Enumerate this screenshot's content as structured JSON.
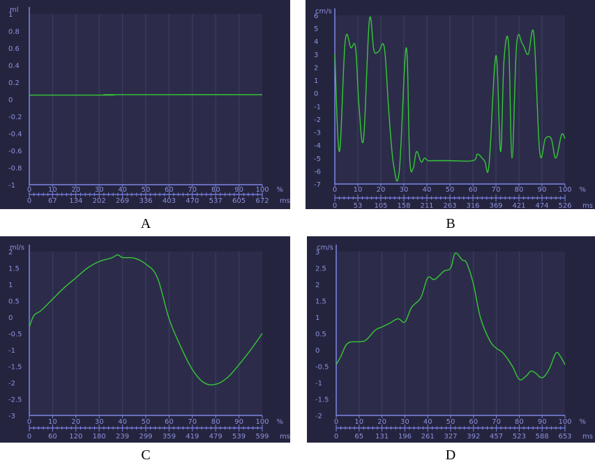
{
  "colors": {
    "panel_bg": "#25243f",
    "plot_bg": "#2c2c4a",
    "grid": "#3e3f63",
    "axis": "#7f86e6",
    "label": "#8d92dc",
    "line": "#37c837",
    "caption": "#000000"
  },
  "chart_data": [
    {
      "id": "A",
      "caption": "A",
      "type": "line",
      "unit": "ml",
      "ylim": [
        -1,
        1
      ],
      "yticks": [
        "1",
        "0.8",
        "0.6",
        "0.4",
        "0.2",
        "0",
        "-0.2",
        "-0.4",
        "-0.6",
        "-0.8",
        "-1"
      ],
      "xticks_pct": [
        "0",
        "10",
        "20",
        "30",
        "40",
        "50",
        "60",
        "70",
        "80",
        "90",
        "100"
      ],
      "xunit_pct": "%",
      "xticks_ms": [
        "0",
        "67",
        "134",
        "202",
        "269",
        "336",
        "403",
        "470",
        "537",
        "605",
        "672"
      ],
      "xunit_ms": "ms",
      "grid": true,
      "series": [
        {
          "x": [
            0,
            35,
            36,
            100
          ],
          "y": [
            0.05,
            0.05,
            0.055,
            0.055
          ]
        }
      ]
    },
    {
      "id": "B",
      "caption": "B",
      "type": "line",
      "unit": "cm/s",
      "ylim": [
        -7,
        6
      ],
      "yticks": [
        "6",
        "5",
        "4",
        "3",
        "2",
        "1",
        "0",
        "-1",
        "-2",
        "-3",
        "-4",
        "-5",
        "-6",
        "-7"
      ],
      "xticks_pct": [
        "0",
        "10",
        "20",
        "30",
        "40",
        "50",
        "60",
        "70",
        "80",
        "90",
        "100"
      ],
      "xunit_pct": "%",
      "xticks_ms": [
        "0",
        "53",
        "105",
        "158",
        "211",
        "263",
        "316",
        "369",
        "421",
        "474",
        "526"
      ],
      "xunit_ms": "ms",
      "grid": true,
      "series": [
        {
          "x": [
            0,
            2,
            4.5,
            7,
            9,
            10.5,
            12.5,
            15,
            17,
            19,
            21.5,
            23.5,
            25.5,
            28,
            31,
            32.5,
            34,
            35.5,
            37.5,
            39,
            40.5,
            43,
            50,
            60,
            62,
            65,
            67,
            70,
            72,
            73.5,
            75.5,
            77,
            79,
            81.5,
            84,
            86.5,
            89,
            91.5,
            94,
            96,
            98.5,
            100
          ],
          "y": [
            3,
            -4.5,
            4,
            3.5,
            3.5,
            -1,
            -3.5,
            5.6,
            3.3,
            3.2,
            3.5,
            -1.5,
            -5.5,
            -6,
            3.5,
            -5,
            -5.8,
            -4.5,
            -5.3,
            -5,
            -5.2,
            -5.2,
            -5.2,
            -5.2,
            -4.7,
            -5.2,
            -5.5,
            2.9,
            -4.5,
            2.5,
            3.8,
            -5,
            3.8,
            3.8,
            3.0,
            4.5,
            -4.5,
            -3.5,
            -3.5,
            -5,
            -3.2,
            -3.5
          ]
        }
      ]
    },
    {
      "id": "C",
      "caption": "C",
      "type": "line",
      "unit": "ml/s",
      "ylim": [
        -3,
        2
      ],
      "yticks": [
        "2",
        "1.5",
        "1",
        "0.5",
        "0",
        "-0.5",
        "-1",
        "-1.5",
        "-2",
        "-2.5",
        "-3"
      ],
      "xticks_pct": [
        "0",
        "10",
        "20",
        "30",
        "40",
        "50",
        "60",
        "70",
        "80",
        "90",
        "100"
      ],
      "xunit_pct": "%",
      "xticks_ms": [
        "0",
        "60",
        "120",
        "180",
        "239",
        "299",
        "359",
        "419",
        "479",
        "539",
        "599"
      ],
      "xunit_ms": "ms",
      "grid": true,
      "series": [
        {
          "x": [
            0,
            2,
            5,
            10,
            15,
            20,
            25,
            30,
            35,
            38,
            40,
            45,
            50,
            55,
            60,
            65,
            70,
            75,
            80,
            85,
            90,
            95,
            100
          ],
          "y": [
            -0.3,
            0.05,
            0.2,
            0.55,
            0.9,
            1.2,
            1.5,
            1.7,
            1.8,
            1.9,
            1.82,
            1.8,
            1.62,
            1.2,
            -0.05,
            -0.9,
            -1.6,
            -2.0,
            -2.05,
            -1.85,
            -1.45,
            -1.0,
            -0.5
          ]
        }
      ]
    },
    {
      "id": "D",
      "caption": "D",
      "type": "line",
      "unit": "cm/s",
      "ylim": [
        -2,
        3
      ],
      "yticks": [
        "3",
        "2.5",
        "2",
        "1.5",
        "1",
        "0.5",
        "0",
        "-0.5",
        "-1",
        "-1.5",
        "-2"
      ],
      "xticks_pct": [
        "0",
        "10",
        "20",
        "30",
        "40",
        "50",
        "60",
        "70",
        "80",
        "90",
        "100"
      ],
      "xunit_pct": "%",
      "xticks_ms": [
        "0",
        "65",
        "131",
        "196",
        "261",
        "327",
        "392",
        "457",
        "523",
        "588",
        "653"
      ],
      "xunit_ms": "ms",
      "grid": true,
      "series": [
        {
          "x": [
            0,
            2,
            5,
            10,
            13,
            17,
            20,
            23,
            27,
            30,
            33,
            37,
            40,
            43,
            47,
            50,
            52,
            55,
            57,
            60,
            63,
            67,
            70,
            73,
            77,
            80,
            83,
            85,
            87,
            90,
            93,
            96,
            98,
            100
          ],
          "y": [
            -0.45,
            -0.2,
            0.2,
            0.25,
            0.3,
            0.6,
            0.7,
            0.8,
            0.95,
            0.85,
            1.3,
            1.6,
            2.2,
            2.15,
            2.4,
            2.5,
            2.95,
            2.75,
            2.65,
            2.0,
            1.0,
            0.3,
            0.05,
            -0.1,
            -0.5,
            -0.9,
            -0.8,
            -0.65,
            -0.7,
            -0.85,
            -0.6,
            -0.1,
            -0.2,
            -0.45
          ]
        }
      ]
    }
  ]
}
